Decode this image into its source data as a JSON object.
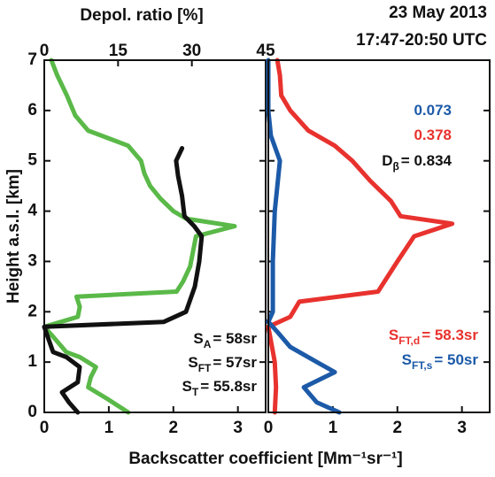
{
  "chart_data": [
    {
      "type": "line",
      "ylabel": "Height a.s.l. [km]",
      "xlabel": "Backscatter coefficient [Mm⁻¹sr⁻¹]",
      "x2label": "Depol. ratio [%]",
      "xlim": [
        0,
        3.43
      ],
      "xticks": [
        0,
        1,
        2,
        3
      ],
      "x2lim": [
        0,
        45
      ],
      "x2ticks": [
        0,
        15,
        30,
        45
      ],
      "ylim": [
        0,
        7
      ],
      "yticks": [
        0,
        1,
        2,
        3,
        4,
        5,
        6,
        7
      ],
      "series": [
        {
          "color": "#5ab948",
          "values": [
            1.3,
            1.0,
            0.68,
            0.72,
            0.8,
            0.55,
            0.34,
            0.14,
            0.0,
            0.52,
            0.55,
            0.5,
            2.05,
            2.15,
            2.26,
            2.35,
            2.95,
            2.2,
            2.0,
            1.8,
            1.64,
            1.55,
            1.5,
            1.3,
            0.68,
            0.48,
            0.35,
            0.2,
            0.11
          ],
          "heights": [
            0,
            0.25,
            0.5,
            0.7,
            0.9,
            1.1,
            1.2,
            1.5,
            1.7,
            1.9,
            2.1,
            2.3,
            2.4,
            2.6,
            2.9,
            3.5,
            3.7,
            3.85,
            4.0,
            4.25,
            4.5,
            4.75,
            5.0,
            5.3,
            5.6,
            5.9,
            6.3,
            6.7,
            7.0
          ]
        },
        {
          "color": "#111111",
          "axis": "x2",
          "values": [
            6.8,
            5.0,
            3.6,
            6.8,
            7.2,
            4.5,
            1.8,
            0.7,
            0.0,
            24.3,
            28.8,
            30.6,
            31.5,
            32.0,
            30.5,
            28.5,
            28.0,
            27.2,
            26.8,
            28.0
          ],
          "heights": [
            0,
            0.2,
            0.4,
            0.6,
            0.9,
            1.1,
            1.2,
            1.5,
            1.7,
            1.8,
            2.0,
            2.5,
            3.0,
            3.5,
            3.7,
            3.9,
            4.3,
            4.7,
            5.0,
            5.25
          ]
        }
      ],
      "annotations": [
        {
          "text": "S",
          "sub": "A",
          "rest": "= 58sr",
          "color": "#111111"
        },
        {
          "text": "S",
          "sub": "FT",
          "rest": "= 57sr",
          "color": "#111111"
        },
        {
          "text": "S",
          "sub": "T",
          "rest": "= 55.8sr",
          "color": "#111111"
        }
      ]
    },
    {
      "type": "line",
      "title": "23 May 2013",
      "subtitle": "17:47-20:50 UTC",
      "xlim": [
        0,
        3.43
      ],
      "xticks": [
        0,
        1,
        2,
        3
      ],
      "ylim": [
        0,
        7
      ],
      "yticks": [
        0,
        1,
        2,
        3,
        4,
        5,
        6,
        7
      ],
      "series": [
        {
          "color": "#e8322e",
          "values": [
            0.1,
            0.12,
            0.1,
            0.0,
            0.34,
            0.48,
            1.7,
            2.0,
            2.26,
            2.85,
            2.05,
            1.9,
            1.58,
            1.3,
            1.03,
            0.62,
            0.34,
            0.2,
            0.18,
            0.14
          ],
          "heights": [
            0,
            0.5,
            1.0,
            1.7,
            1.9,
            2.2,
            2.4,
            3.0,
            3.5,
            3.75,
            3.9,
            4.2,
            4.6,
            5.0,
            5.3,
            5.6,
            6.0,
            6.3,
            6.7,
            7.0
          ]
        },
        {
          "color": "#1c5aa8",
          "values": [
            1.1,
            0.75,
            0.55,
            1.03,
            0.75,
            0.34,
            0.14,
            0.0,
            0.07,
            0.07,
            0.1,
            0.18,
            0.04,
            0.0,
            0.0
          ],
          "heights": [
            0,
            0.2,
            0.5,
            0.8,
            1.0,
            1.3,
            1.6,
            1.8,
            2.0,
            3.0,
            4.0,
            5.0,
            5.5,
            6.0,
            7.0
          ]
        }
      ],
      "annotations": [
        {
          "text": "0.073",
          "color": "#1c5aa8"
        },
        {
          "text": "0.378",
          "color": "#e8322e"
        },
        {
          "text": "D",
          "sub": "β",
          "rest": "= 0.834",
          "color": "#111111"
        },
        {
          "text": "S",
          "sub": "FT,d",
          "rest": "= 58.3sr",
          "color": "#e8322e"
        },
        {
          "text": "S",
          "sub": "FT,s",
          "rest": "= 50sr",
          "color": "#1c5aa8"
        }
      ]
    }
  ]
}
